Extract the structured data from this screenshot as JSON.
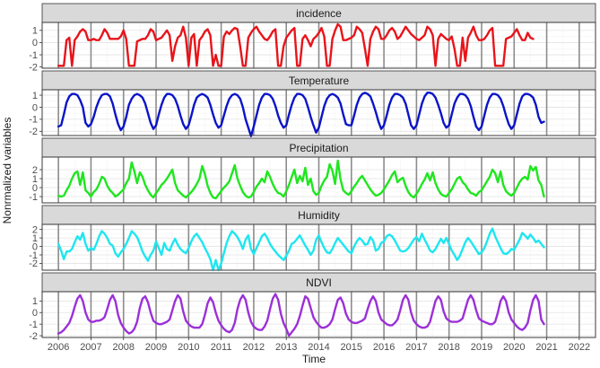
{
  "chart_data": {
    "type": "line",
    "xlabel": "Time",
    "ylabel": "Nonrmalized variables",
    "x_ticks": [
      "2006",
      "2007",
      "2008",
      "2009",
      "2010",
      "2011",
      "2012",
      "2013",
      "2014",
      "2015",
      "2016",
      "2017",
      "2018",
      "2019",
      "2020",
      "2021",
      "2022"
    ],
    "xlim": [
      2005.5,
      2022.5
    ],
    "x_start": 2006.0,
    "x_step": 0.0833333,
    "legend": "none",
    "grid": true,
    "panels": [
      {
        "name": "incidence",
        "color": "#e8141a",
        "ylim": [
          -2.1,
          1.65
        ],
        "yticks": [
          -2,
          -1,
          0,
          1
        ],
        "values": [
          -1.9,
          -1.9,
          -1.9,
          0.2,
          0.4,
          -1.9,
          0.2,
          0.5,
          0.9,
          1.1,
          0.9,
          0.2,
          0.2,
          0.3,
          0.2,
          0.2,
          0.6,
          1.1,
          0.8,
          0.3,
          0.3,
          0.3,
          0.3,
          0.5,
          1.0,
          0.3,
          -1.9,
          -1.9,
          -1.9,
          0.1,
          0.2,
          0.3,
          0.3,
          0.6,
          1.1,
          0.9,
          0.2,
          0.3,
          0.4,
          0.7,
          1.0,
          0.6,
          -1.5,
          -0.3,
          0.4,
          0.6,
          1.3,
          0.4,
          -1.9,
          0.4,
          0.7,
          -1.9,
          0.2,
          0.5,
          0.9,
          1.1,
          0.6,
          -1.9,
          -1.0,
          -1.9,
          -1.9,
          0.5,
          0.9,
          0.7,
          1.0,
          1.2,
          1.1,
          -0.3,
          -1.9,
          -1.9,
          0.4,
          0.8,
          1.1,
          1.3,
          0.9,
          0.6,
          0.3,
          0.2,
          0.5,
          0.9,
          1.1,
          -1.9,
          -1.9,
          -0.3,
          0.4,
          0.7,
          1.0,
          1.2,
          -1.9,
          -1.9,
          0.3,
          0.6,
          0.2,
          -0.3,
          0.3,
          0.5,
          0.8,
          1.2,
          0.5,
          -1.9,
          -1.9,
          0.3,
          1.0,
          1.5,
          1.3,
          0.2,
          0.2,
          0.3,
          0.4,
          0.6,
          1.3,
          1.1,
          0.8,
          -0.5,
          -1.9,
          0.3,
          0.9,
          1.3,
          1.1,
          0.3,
          0.3,
          0.6,
          1.0,
          1.2,
          0.9,
          0.3,
          0.5,
          0.9,
          1.3,
          1.0,
          0.7,
          0.5,
          0.3,
          0.2,
          0.4,
          0.6,
          1.3,
          1.1,
          0.6,
          -1.9,
          0.3,
          0.7,
          0.5,
          0.3,
          0.2,
          0.5,
          -0.5,
          -1.9,
          -1.9,
          0.4,
          -1.5,
          0.4,
          0.8,
          1.3,
          0.6,
          0.2,
          0.2,
          0.3,
          0.6,
          1.0,
          1.2,
          -1.9,
          -1.9,
          -1.9,
          -1.9,
          0.3,
          0.4,
          0.5,
          0.8,
          1.1,
          0.6,
          0.2,
          0.2,
          0.8,
          0.4,
          0.3
        ]
      },
      {
        "name": "Temperature",
        "color": "#0a14c8",
        "ylim": [
          -2.35,
          1.45
        ],
        "yticks": [
          -2,
          -1,
          0,
          1
        ],
        "values": [
          -1.6,
          -1.5,
          -0.6,
          0.4,
          0.9,
          1.1,
          1.1,
          1.0,
          0.6,
          0.0,
          -1.3,
          -1.6,
          -1.4,
          -0.8,
          0.0,
          0.6,
          1.0,
          1.1,
          1.1,
          0.9,
          0.3,
          -0.6,
          -1.4,
          -1.9,
          -1.6,
          -0.8,
          0.2,
          0.7,
          1.0,
          1.1,
          1.0,
          0.8,
          0.3,
          -0.5,
          -1.3,
          -1.8,
          -1.5,
          -0.6,
          0.2,
          0.8,
          1.1,
          1.1,
          1.0,
          0.7,
          0.1,
          -0.7,
          -1.4,
          -1.8,
          -1.5,
          -0.7,
          0.2,
          0.8,
          1.0,
          1.1,
          1.0,
          0.8,
          0.2,
          -0.6,
          -1.3,
          -1.7,
          -1.5,
          -0.7,
          0.1,
          0.7,
          1.0,
          1.1,
          1.0,
          0.7,
          0.0,
          -1.0,
          -1.7,
          -2.4,
          -1.6,
          -0.7,
          0.2,
          0.8,
          1.1,
          1.1,
          1.0,
          0.7,
          0.1,
          -0.7,
          -1.3,
          -1.7,
          -1.5,
          -0.6,
          0.2,
          0.8,
          1.1,
          1.1,
          1.0,
          0.7,
          0.0,
          -0.8,
          -1.5,
          -2.1,
          -1.7,
          -0.8,
          0.1,
          0.7,
          1.0,
          1.1,
          1.0,
          0.8,
          0.3,
          -0.6,
          -1.4,
          -1.5,
          -1.5,
          -0.7,
          0.2,
          0.8,
          1.1,
          1.2,
          1.1,
          0.9,
          0.3,
          -0.4,
          -1.2,
          -1.8,
          -1.5,
          -0.7,
          0.2,
          0.8,
          1.1,
          1.1,
          1.0,
          0.8,
          0.3,
          -0.6,
          -1.5,
          -1.8,
          -1.5,
          -0.6,
          0.3,
          0.9,
          1.2,
          1.2,
          1.1,
          0.8,
          0.2,
          -0.5,
          -1.3,
          -1.7,
          -1.5,
          -0.6,
          0.3,
          0.8,
          1.1,
          1.1,
          1.0,
          0.7,
          0.1,
          -0.8,
          -1.6,
          -1.9,
          -1.6,
          -0.7,
          0.2,
          0.8,
          1.1,
          1.1,
          1.0,
          0.7,
          0.1,
          -0.7,
          -1.4,
          -1.8,
          -1.5,
          -0.6,
          0.3,
          0.9,
          1.1,
          1.1,
          1.0,
          0.8,
          0.2,
          -0.8,
          -1.3,
          -1.2
        ]
      },
      {
        "name": "Precipitation",
        "color": "#1ee61e",
        "ylim": [
          -1.7,
          3.4
        ],
        "yticks": [
          -1,
          0,
          1,
          2
        ],
        "values": [
          -0.9,
          -1.0,
          -0.9,
          -0.3,
          0.2,
          1.0,
          1.6,
          1.8,
          0.3,
          1.7,
          -0.3,
          -0.6,
          -1.0,
          -0.5,
          -0.2,
          0.4,
          1.2,
          1.0,
          0.2,
          -0.3,
          -0.6,
          -1.0,
          -0.8,
          -0.5,
          -0.2,
          0.5,
          1.0,
          2.8,
          1.8,
          0.5,
          1.7,
          1.2,
          0.3,
          -0.3,
          -0.8,
          -1.1,
          -0.6,
          -0.2,
          0.3,
          0.6,
          1.0,
          1.5,
          2.0,
          0.5,
          -0.3,
          -0.6,
          -0.9,
          -1.1,
          -0.8,
          -0.5,
          -0.1,
          0.4,
          1.0,
          2.4,
          1.5,
          0.2,
          -0.6,
          -1.1,
          -1.2,
          -0.8,
          -0.4,
          0.0,
          0.3,
          0.7,
          1.6,
          2.5,
          1.0,
          0.2,
          -0.5,
          -0.9,
          -1.1,
          -1.0,
          -0.5,
          0.1,
          0.5,
          1.0,
          0.6,
          1.8,
          1.2,
          0.4,
          -0.2,
          -0.6,
          -0.7,
          -1.0,
          -0.4,
          0.3,
          1.2,
          2.0,
          0.5,
          1.3,
          0.7,
          2.2,
          0.3,
          1.0,
          -0.4,
          -0.8,
          -0.6,
          0.2,
          0.8,
          1.2,
          2.6,
          1.9,
          0.4,
          3.0,
          0.9,
          -0.3,
          -0.6,
          -0.8,
          -0.4,
          0.1,
          0.5,
          1.0,
          1.3,
          0.8,
          0.3,
          -0.2,
          -0.6,
          -0.9,
          -0.8,
          -0.6,
          -0.2,
          0.3,
          0.8,
          1.4,
          1.8,
          0.6,
          0.9,
          1.1,
          0.2,
          -0.5,
          -0.9,
          -1.1,
          -0.7,
          -0.2,
          0.4,
          0.9,
          1.6,
          0.8,
          1.7,
          0.5,
          -0.2,
          -0.7,
          -0.9,
          -1.0,
          -0.6,
          -0.2,
          0.4,
          1.0,
          1.2,
          0.6,
          0.3,
          -0.2,
          -0.6,
          -0.7,
          -0.9,
          -0.5,
          -0.3,
          0.2,
          0.7,
          1.2,
          2.0,
          1.6,
          0.6,
          1.8,
          0.3,
          -0.4,
          -0.7,
          -0.9,
          -0.6,
          0.0,
          0.6,
          1.0,
          1.2,
          0.9,
          2.4,
          1.9,
          2.3,
          0.8,
          0.3,
          -1.0
        ]
      },
      {
        "name": "Humidity",
        "color": "#1ee6f0",
        "ylim": [
          -2.8,
          2.6
        ],
        "yticks": [
          -2,
          -1,
          0,
          1,
          2
        ],
        "values": [
          0.3,
          -0.5,
          -1.5,
          -0.6,
          -0.6,
          -0.3,
          0.5,
          1.2,
          0.8,
          1.6,
          0.3,
          -0.5,
          -0.2,
          -0.4,
          0.3,
          1.2,
          1.8,
          1.5,
          1.0,
          0.3,
          0.1,
          -0.8,
          -1.2,
          -0.7,
          -0.3,
          0.3,
          1.0,
          1.8,
          1.5,
          1.1,
          0.3,
          -0.6,
          -1.2,
          -1.7,
          -1.0,
          -0.5,
          0.6,
          -0.2,
          -1.0,
          0.4,
          -0.3,
          -0.5,
          0.3,
          0.9,
          0.2,
          -0.3,
          -0.6,
          -0.8,
          -0.2,
          0.6,
          1.2,
          1.5,
          1.0,
          0.5,
          -0.2,
          -0.8,
          -1.5,
          -2.8,
          -1.6,
          -2.8,
          -2.0,
          -0.8,
          0.4,
          1.2,
          1.8,
          1.5,
          1.1,
          0.5,
          -0.3,
          0.8,
          1.3,
          -0.3,
          -0.9,
          -0.2,
          0.5,
          1.2,
          1.5,
          1.0,
          0.3,
          -0.2,
          -0.6,
          -1.0,
          -1.3,
          -1.6,
          -1.1,
          -0.5,
          0.3,
          0.5,
          0.9,
          1.3,
          0.7,
          0.1,
          -0.4,
          -1.0,
          -0.5,
          0.8,
          1.3,
          0.5,
          -0.2,
          -0.7,
          -0.8,
          -0.3,
          0.4,
          1.0,
          0.6,
          0.2,
          -0.2,
          -0.6,
          -0.8,
          0.0,
          0.6,
          1.0,
          0.7,
          0.2,
          0.3,
          1.1,
          0.7,
          -0.5,
          -0.3,
          0.4,
          0.6,
          1.2,
          1.4,
          1.2,
          0.7,
          0.1,
          -0.5,
          -0.6,
          -0.5,
          -0.2,
          0.3,
          0.8,
          1.1,
          0.6,
          1.5,
          0.8,
          0.2,
          -0.5,
          -0.7,
          -0.3,
          0.3,
          0.9,
          0.4,
          1.0,
          0.3,
          -0.5,
          -1.0,
          -1.6,
          -1.1,
          -0.3,
          0.5,
          1.0,
          0.6,
          0.1,
          -0.4,
          -0.9,
          -0.7,
          -0.2,
          0.6,
          1.5,
          2.1,
          1.2,
          0.5,
          -0.2,
          -0.8,
          -0.9,
          -0.7,
          -0.3,
          -0.4,
          0.2,
          0.8,
          1.6,
          1.3,
          0.9,
          1.4,
          1.0,
          0.5,
          0.7,
          0.3,
          -0.1
        ]
      },
      {
        "name": "NDVI",
        "color": "#9b30d8",
        "ylim": [
          -2.15,
          1.8
        ],
        "yticks": [
          -2,
          -1,
          0,
          1
        ],
        "values": [
          -1.8,
          -1.7,
          -1.5,
          -1.2,
          -0.9,
          -0.3,
          0.5,
          1.2,
          1.5,
          1.0,
          0.0,
          -0.6,
          -0.8,
          -0.8,
          -0.7,
          -0.7,
          -0.6,
          -0.4,
          0.3,
          1.1,
          1.5,
          1.0,
          -0.2,
          -0.9,
          -1.3,
          -1.6,
          -1.8,
          -1.7,
          -1.4,
          -0.8,
          0.4,
          1.2,
          1.4,
          0.9,
          0.0,
          -0.7,
          -0.9,
          -1.0,
          -1.0,
          -0.9,
          -0.8,
          -0.6,
          0.2,
          1.0,
          1.5,
          1.2,
          0.1,
          -0.7,
          -1.0,
          -1.2,
          -1.3,
          -1.3,
          -1.3,
          -1.0,
          -0.2,
          0.8,
          1.3,
          0.9,
          0.0,
          -0.7,
          -1.1,
          -1.4,
          -1.6,
          -1.7,
          -1.5,
          -0.9,
          0.3,
          1.1,
          1.5,
          1.1,
          0.0,
          -0.8,
          -1.2,
          -1.4,
          -1.5,
          -1.5,
          -1.2,
          -0.7,
          0.3,
          1.2,
          1.6,
          1.1,
          -0.1,
          -0.9,
          -1.4,
          -2.0,
          -1.7,
          -1.4,
          -1.0,
          -0.3,
          0.6,
          1.4,
          1.2,
          0.4,
          -0.4,
          -0.8,
          -1.1,
          -1.3,
          -1.3,
          -1.2,
          -1.0,
          -0.6,
          0.3,
          1.1,
          1.3,
          0.8,
          -0.1,
          -0.6,
          -0.8,
          -0.9,
          -0.9,
          -0.8,
          -0.7,
          -0.5,
          0.3,
          1.0,
          1.4,
          1.0,
          0.0,
          -0.6,
          -0.8,
          -1.0,
          -1.1,
          -1.1,
          -0.9,
          -0.6,
          0.2,
          1.1,
          1.5,
          1.1,
          0.0,
          -0.7,
          -1.0,
          -1.2,
          -1.3,
          -1.3,
          -1.2,
          -0.8,
          0.1,
          1.0,
          1.4,
          1.1,
          0.1,
          -0.5,
          -0.7,
          -0.8,
          -0.8,
          -0.8,
          -0.7,
          -0.5,
          0.3,
          1.1,
          1.5,
          1.1,
          0.2,
          -0.5,
          -0.7,
          -0.8,
          -0.9,
          -1.0,
          -1.0,
          -0.8,
          0.0,
          1.0,
          1.4,
          1.0,
          0.0,
          -0.6,
          -0.9,
          -1.2,
          -1.4,
          -1.5,
          -1.3,
          -0.9,
          0.2,
          1.1,
          1.5,
          1.0,
          -0.6,
          -1.0
        ]
      }
    ]
  }
}
